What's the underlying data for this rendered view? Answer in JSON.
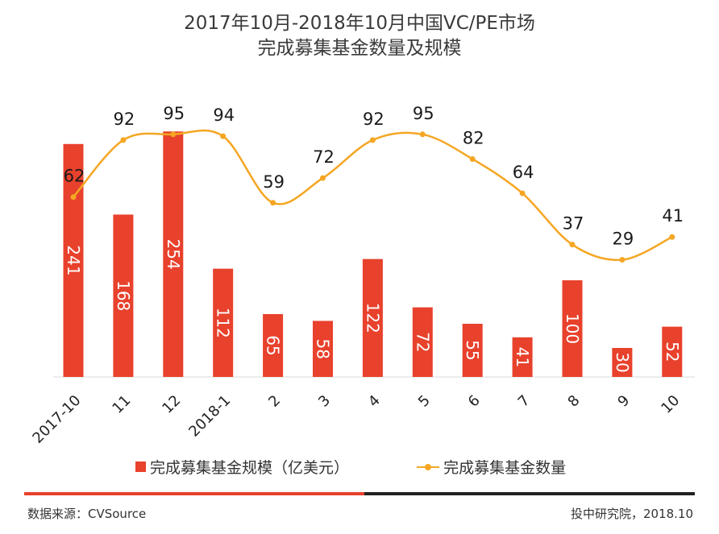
{
  "chart_data": {
    "type": "bar",
    "title": "2017年10月-2018年10月中国VC/PE市场",
    "subtitle": "完成募集基金数量及规模",
    "categories": [
      "2017-10",
      "11",
      "12",
      "2018-1",
      "2",
      "3",
      "4",
      "5",
      "6",
      "7",
      "8",
      "9",
      "10"
    ],
    "series": [
      {
        "name": "完成募集基金规模（亿美元）",
        "type": "bar",
        "color": "#e8412c",
        "values": [
          241,
          168,
          254,
          112,
          65,
          58,
          122,
          72,
          55,
          41,
          100,
          30,
          52
        ]
      },
      {
        "name": "完成募集基金数量",
        "type": "line",
        "smooth": true,
        "color": "#f5a623",
        "values": [
          62,
          92,
          95,
          94,
          59,
          72,
          92,
          95,
          82,
          64,
          37,
          29,
          41
        ]
      }
    ],
    "grid": false,
    "legend": "bottom"
  },
  "footer": {
    "source": "数据来源：CVSource",
    "credit": "投中研究院，2018.10",
    "rule_colors": [
      "#e8412c",
      "#222222"
    ]
  }
}
